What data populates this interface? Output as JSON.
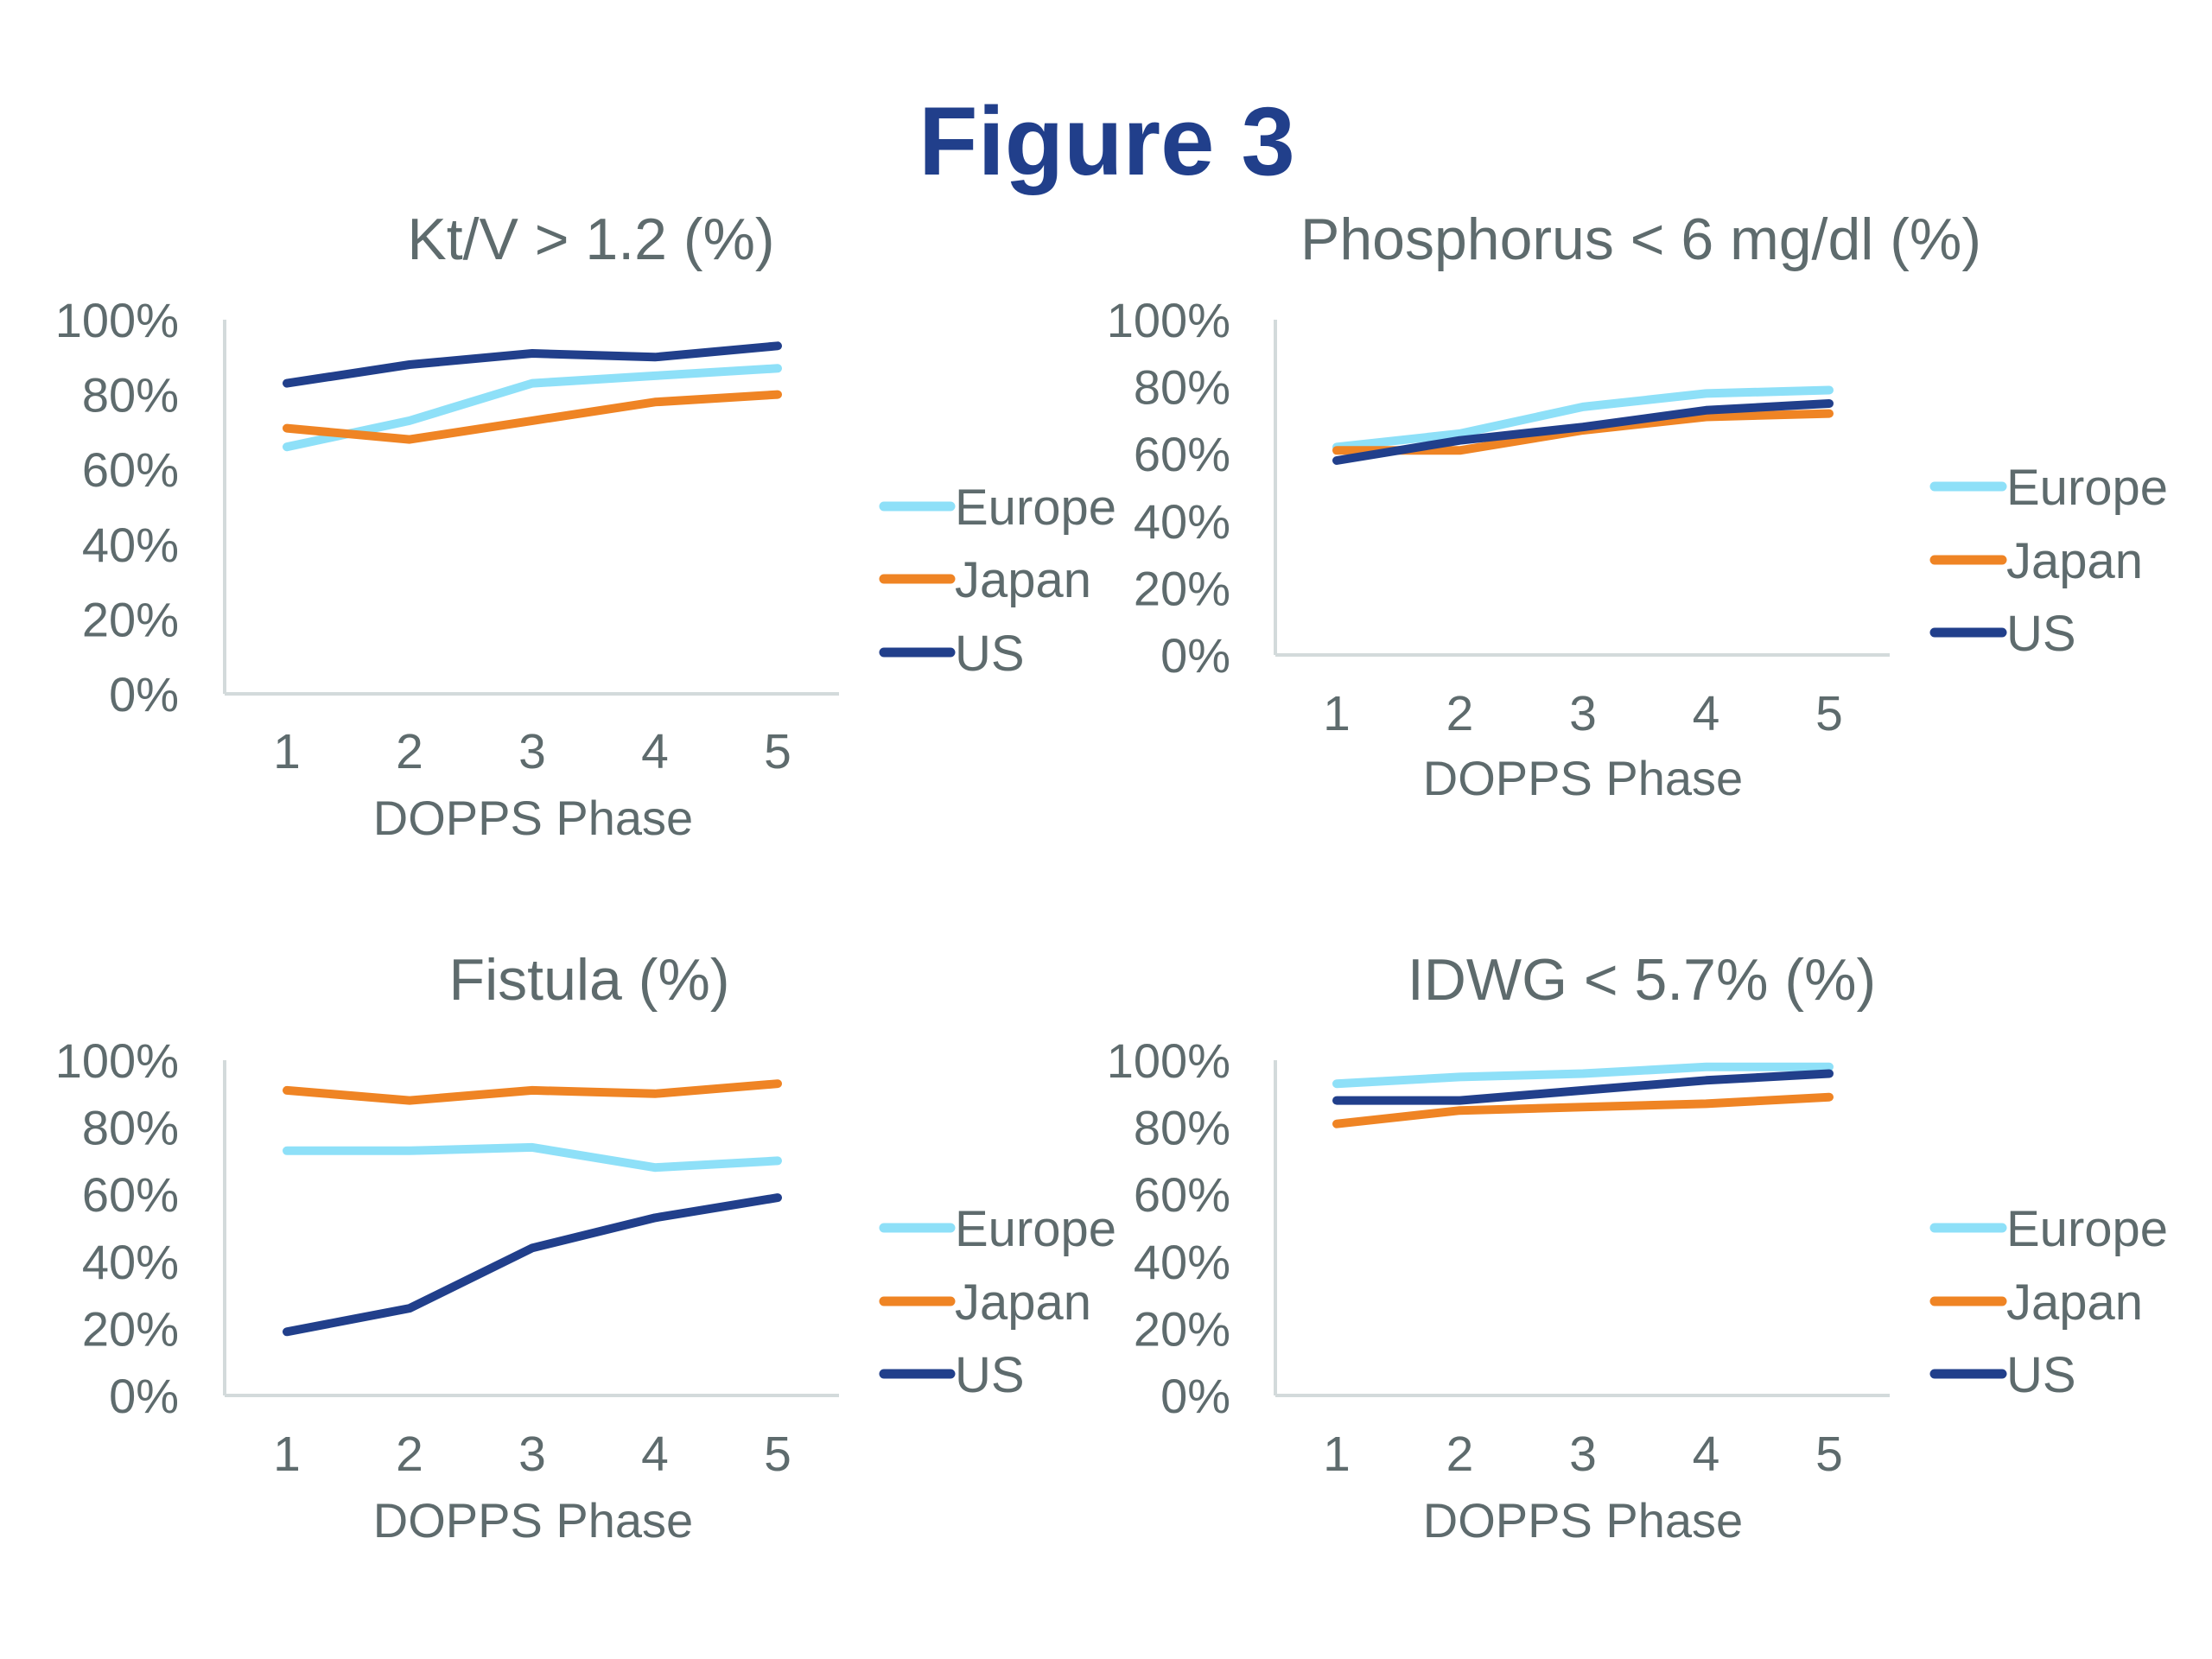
{
  "figure_title": "Figure 3",
  "chart_data": [
    {
      "type": "line",
      "title": "Kt/V > 1.2 (%)",
      "xlabel": "DOPPS Phase",
      "ylabel": "",
      "categories": [
        "1",
        "2",
        "3",
        "4",
        "5"
      ],
      "yticks": [
        "0%",
        "20%",
        "40%",
        "60%",
        "80%",
        "100%"
      ],
      "ylim": [
        0,
        100
      ],
      "grid": false,
      "legend": "right",
      "series": [
        {
          "name": "Europe",
          "color": "#8ee0f8",
          "values": [
            66,
            73,
            83,
            85,
            87
          ]
        },
        {
          "name": "Japan",
          "color": "#ef8424",
          "values": [
            71,
            68,
            73,
            78,
            80
          ]
        },
        {
          "name": "US",
          "color": "#213f8b",
          "values": [
            83,
            88,
            91,
            90,
            93
          ]
        }
      ]
    },
    {
      "type": "line",
      "title": "Phosphorus < 6 mg/dl (%)",
      "xlabel": "DOPPS Phase",
      "ylabel": "",
      "categories": [
        "1",
        "2",
        "3",
        "4",
        "5"
      ],
      "yticks": [
        "0%",
        "20%",
        "40%",
        "60%",
        "80%",
        "100%"
      ],
      "ylim": [
        0,
        100
      ],
      "grid": false,
      "legend": "right",
      "series": [
        {
          "name": "Europe",
          "color": "#8ee0f8",
          "values": [
            62,
            66,
            74,
            78,
            79
          ]
        },
        {
          "name": "Japan",
          "color": "#ef8424",
          "values": [
            61,
            61,
            67,
            71,
            72
          ]
        },
        {
          "name": "US",
          "color": "#213f8b",
          "values": [
            58,
            64,
            68,
            73,
            75
          ]
        }
      ]
    },
    {
      "type": "line",
      "title": "Fistula (%)",
      "xlabel": "DOPPS Phase",
      "ylabel": "",
      "categories": [
        "1",
        "2",
        "3",
        "4",
        "5"
      ],
      "yticks": [
        "0%",
        "20%",
        "40%",
        "60%",
        "80%",
        "100%"
      ],
      "ylim": [
        0,
        100
      ],
      "grid": false,
      "legend": "right",
      "series": [
        {
          "name": "Europe",
          "color": "#8ee0f8",
          "values": [
            73,
            73,
            74,
            68,
            70
          ]
        },
        {
          "name": "Japan",
          "color": "#ef8424",
          "values": [
            91,
            88,
            91,
            90,
            93
          ]
        },
        {
          "name": "US",
          "color": "#213f8b",
          "values": [
            19,
            26,
            44,
            53,
            59
          ]
        }
      ]
    },
    {
      "type": "line",
      "title": "IDWG < 5.7% (%)",
      "xlabel": "DOPPS Phase",
      "ylabel": "",
      "categories": [
        "1",
        "2",
        "3",
        "4",
        "5"
      ],
      "yticks": [
        "0%",
        "20%",
        "40%",
        "60%",
        "80%",
        "100%"
      ],
      "ylim": [
        0,
        100
      ],
      "grid": false,
      "legend": "right",
      "series": [
        {
          "name": "Europe",
          "color": "#8ee0f8",
          "values": [
            93,
            95,
            96,
            98,
            98
          ]
        },
        {
          "name": "Japan",
          "color": "#ef8424",
          "values": [
            81,
            85,
            86,
            87,
            89
          ]
        },
        {
          "name": "US",
          "color": "#213f8b",
          "values": [
            88,
            88,
            91,
            94,
            96
          ]
        }
      ]
    }
  ]
}
